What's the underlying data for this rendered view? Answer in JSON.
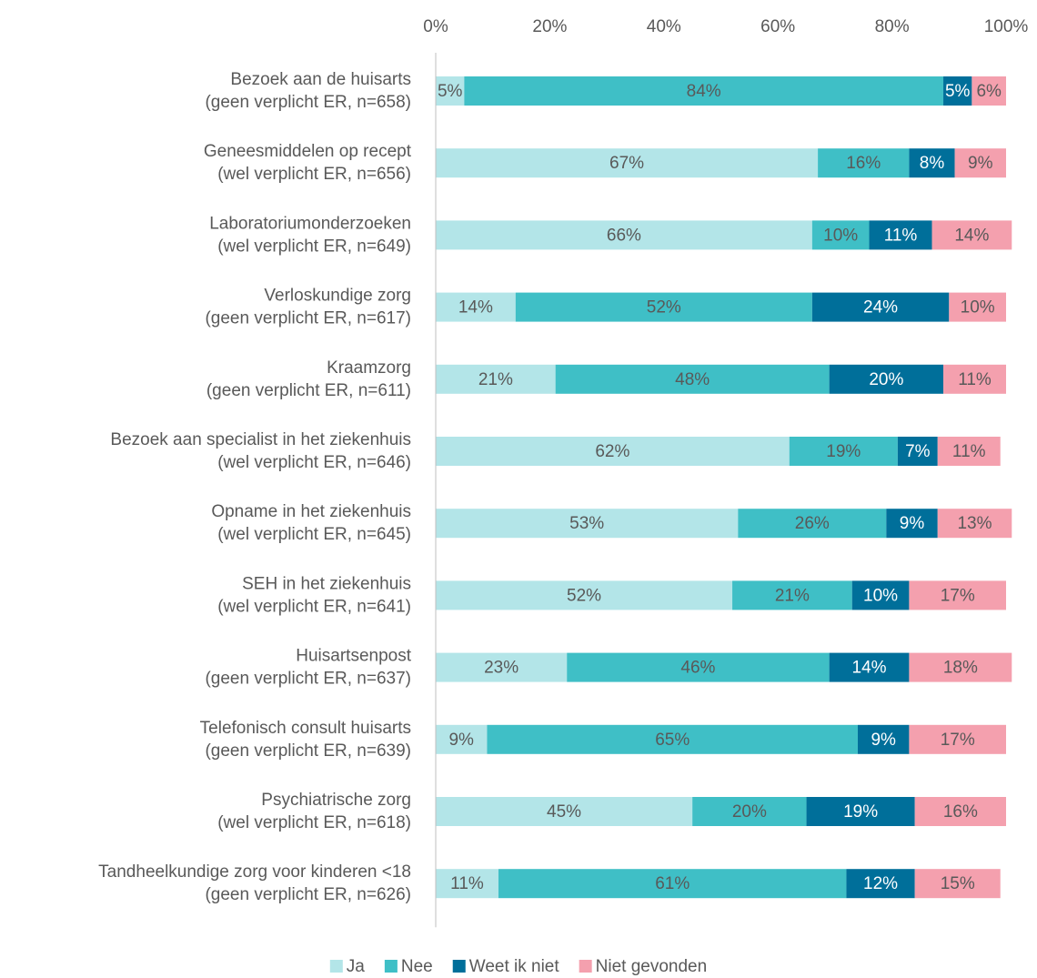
{
  "chart_data": {
    "type": "stacked-bar-horizontal",
    "categories": [
      [
        "Bezoek aan de huisarts",
        "(geen verplicht ER, n=658)"
      ],
      [
        "Geneesmiddelen op recept",
        "(wel verplicht ER, n=656)"
      ],
      [
        "Laboratoriumonderzoeken",
        "(wel verplicht ER, n=649)"
      ],
      [
        "Verloskundige zorg",
        "(geen verplicht ER, n=617)"
      ],
      [
        "Kraamzorg",
        "(geen verplicht ER, n=611)"
      ],
      [
        "Bezoek aan specialist in het ziekenhuis",
        "(wel verplicht ER, n=646)"
      ],
      [
        "Opname in het ziekenhuis",
        "(wel verplicht ER, n=645)"
      ],
      [
        "SEH in het ziekenhuis",
        "(wel verplicht ER, n=641)"
      ],
      [
        "Huisartsenpost",
        "(geen verplicht ER, n=637)"
      ],
      [
        "Telefonisch consult huisarts",
        "(geen verplicht ER, n=639)"
      ],
      [
        "Psychiatrische zorg",
        "(wel verplicht ER, n=618)"
      ],
      [
        "Tandheelkundige zorg voor kinderen <18",
        "(geen verplicht ER, n=626)"
      ]
    ],
    "series": [
      {
        "name": "Ja",
        "color": "#b3e5e8",
        "values": [
          5,
          67,
          66,
          14,
          21,
          62,
          53,
          52,
          23,
          9,
          45,
          11
        ],
        "value_labels": [
          "5%",
          "67%",
          "66%",
          "14%",
          "21%",
          "62%",
          "53%",
          "52%",
          "23%",
          "9%",
          "45%",
          "11%"
        ]
      },
      {
        "name": "Nee",
        "color": "#3fbfc6",
        "values": [
          84,
          16,
          10,
          52,
          48,
          19,
          26,
          21,
          46,
          65,
          20,
          61
        ],
        "value_labels": [
          "84%",
          "16%",
          "10%",
          "52%",
          "48%",
          "19%",
          "26%",
          "21%",
          "46%",
          "65%",
          "20%",
          "61%"
        ]
      },
      {
        "name": "Weet ik niet",
        "color": "#006f9a",
        "values": [
          5,
          8,
          11,
          24,
          20,
          7,
          9,
          10,
          14,
          9,
          19,
          12
        ],
        "value_labels": [
          "5%",
          "8%",
          "11%",
          "24%",
          "20%",
          "7%",
          "9%",
          "10%",
          "14%",
          "9%",
          "19%",
          "12%"
        ]
      },
      {
        "name": "Niet gevonden",
        "color": "#f4a0ae",
        "values": [
          6,
          9,
          14,
          10,
          11,
          11,
          13,
          17,
          18,
          17,
          16,
          15
        ],
        "value_labels": [
          "6%",
          "9%",
          "14%",
          "10%",
          "11%",
          "11%",
          "13%",
          "17%",
          "18%",
          "17%",
          "16%",
          "15%"
        ]
      }
    ],
    "xlim": [
      0,
      100
    ],
    "xticks": [
      {
        "value": 0,
        "label": "0%"
      },
      {
        "value": 20,
        "label": "20%"
      },
      {
        "value": 40,
        "label": "40%"
      },
      {
        "value": 60,
        "label": "60%"
      },
      {
        "value": 80,
        "label": "80%"
      },
      {
        "value": 100,
        "label": "100%"
      }
    ],
    "legend": "bottom"
  }
}
